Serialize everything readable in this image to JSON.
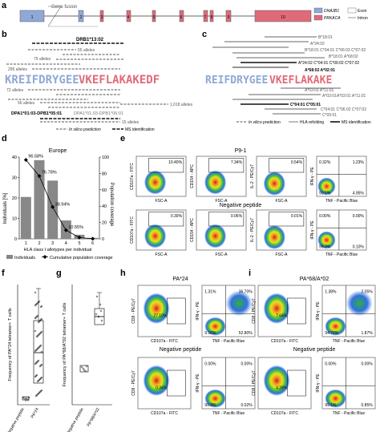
{
  "panel_letters": {
    "a": "a",
    "b": "b",
    "c": "c",
    "d": "d",
    "e": "e",
    "f": "f",
    "g": "g",
    "h": "h",
    "i": "i"
  },
  "panel_a": {
    "gene_fusion": "Gene fusion",
    "exons": [
      "1",
      "2",
      "3",
      "4",
      "5",
      "6",
      "7",
      "8",
      "9",
      "10"
    ],
    "legend_dnajb1": "DNAJB1",
    "legend_prkaca": "PRKACA",
    "legend_exon": "Exon",
    "legend_intron": "Intron",
    "colors": {
      "dnajb1": "#8fa9d4",
      "prkaca": "#e06b78"
    }
  },
  "panel_b": {
    "top_label": "DRB1*13:02",
    "row_labels": [
      "55 alleles",
      "79 alleles",
      "295 alleles",
      "72 alleles",
      "56 alleles",
      "1,018 alleles"
    ],
    "peptide_blue": "KREIFDRYGEE",
    "peptide_red": "VKEFLAKAKEDF",
    "bottom_bold": "DPA1*01:03-DPB1*05:01",
    "bottom_grey": "DPA1*01:03-DPB1*06:01",
    "bottom_label": "15 alleles",
    "legend_insilico": "In silico prediction",
    "legend_ms": "MS identification"
  },
  "panel_c": {
    "right_labels_top": [
      "B*18:01",
      "A*24:02",
      "B*18:01 C*04:01 C*06:03 C*07:02",
      "B*18:01 A*68:02",
      "A*24:02 C*04:01 C*06:02 C*07:02",
      "A*68:02 A*02:01"
    ],
    "peptide_blue": "REIFDRYGEE",
    "peptide_red": "VKEFLAKAKE",
    "right_labels_bottom": [
      "A*03:01 A*11:01",
      "A*03:01",
      "A*03:01 A*11:01",
      "C*04:01 C*05:01",
      "C*04:01 C*06:02 C*07:02",
      "C*05:01"
    ],
    "legend_insilico": "In silico prediction",
    "legend_hla": "HLA refolding",
    "legend_ms": "MS identification"
  },
  "panel_d": {
    "chart_data": {
      "type": "bar",
      "title": "Europe",
      "categories": [
        "1",
        "2",
        "3",
        "4",
        "5",
        "6"
      ],
      "values": [
        20.5,
        38.5,
        28.5,
        9.0,
        2.0,
        0.5
      ],
      "line": [
        96.58,
        76.78,
        38.94,
        10.55,
        1.6,
        0.1
      ],
      "line_labels": [
        "96.58%",
        "76.78%",
        "38.94%",
        "10.55%"
      ],
      "xlabel": "HLA class I allotypes per individual",
      "ylabel": "Individuals [%]",
      "y2label": "Population coverage",
      "yticks": [
        "0",
        "10",
        "20",
        "30",
        "40"
      ],
      "y2ticks": [
        "0",
        "20",
        "40",
        "60",
        "80",
        "100"
      ],
      "ylim": [
        0,
        40
      ],
      "y2lim": [
        0,
        100
      ],
      "legend_bar": "Individuals",
      "legend_line": "Cumulative population coverage"
    }
  },
  "panel_e": {
    "title": "P9-1",
    "neg_label": "Negative peptide",
    "ylabels": [
      "CD107a - FITC",
      "CD154 - APC",
      "IL-2 - PE/Cy7",
      "IFN-γ - PE"
    ],
    "xlabels": [
      "FSC-A",
      "FSC-A",
      "FSC-A",
      "TNF - Pacific Blue"
    ],
    "top_values": [
      "10.40%",
      "7.34%",
      "0.54%",
      "0.32%",
      "1.23%",
      "93.5%",
      "4.95%"
    ],
    "bottom_values": [
      "0.30%",
      "0.06%",
      "0.01%",
      "0.00%",
      "0.00%",
      "99.9%",
      "0.10%"
    ]
  },
  "panel_f": {
    "ylabel": "Frequency of PA*24 tetramer+ T cells",
    "xcats": [
      "Negative peptide",
      "PA*24"
    ]
  },
  "panel_g": {
    "ylabel": "Frequency of PA*68/A*02 tetramer+ T cells",
    "xcats": [
      "Negative peptide",
      "PA*68/A*02"
    ]
  },
  "panel_h": {
    "title": "PA*24",
    "neg_label": "Negative peptide",
    "ylabels": [
      "CD8 - PE/Cy7",
      "IFN-γ - PE"
    ],
    "xlabels": [
      "CD107a - FITC",
      "TNF - Pacific Blue"
    ],
    "top_values": [
      "27.10%",
      "1.31%",
      "36.70%",
      "9.16%",
      "52.80%"
    ],
    "bottom_values": [
      "0.34%",
      "0.00%",
      "0.00%",
      "99.9%",
      "0.02%"
    ]
  },
  "panel_i": {
    "title": "PA*68/A*02",
    "neg_label": "Negative peptide",
    "ylabels": [
      "CD8 - PE/Cy7",
      "IFN-γ - PE"
    ],
    "xlabels": [
      "CD107a - FITC",
      "TNF - Pacific Blue"
    ],
    "top_values": [
      "7.64%",
      "1.38%",
      "2.05%",
      "94.70%",
      "1.87%"
    ],
    "bottom_values": [
      "4.28%",
      "0.00%",
      "0.00%",
      "99.1%",
      "0.85%"
    ]
  }
}
